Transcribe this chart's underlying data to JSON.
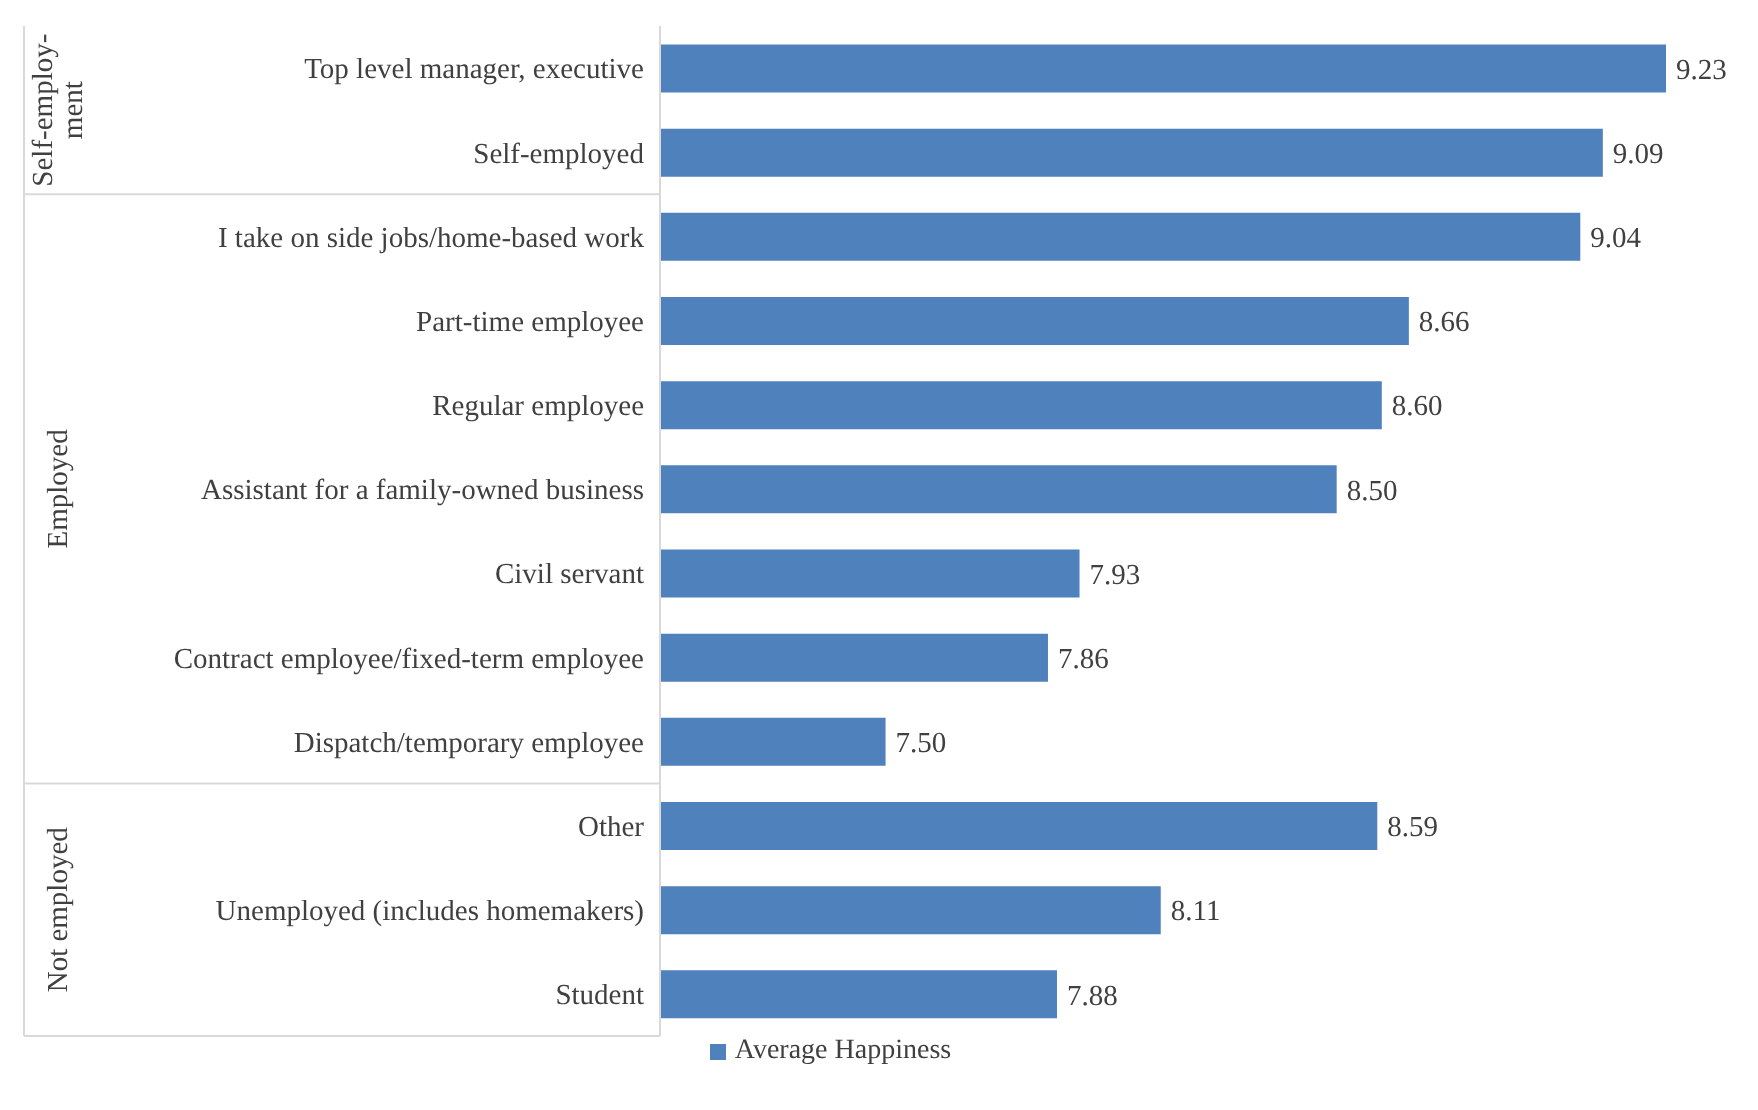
{
  "chart_data": {
    "type": "bar",
    "orientation": "horizontal",
    "tick_labels": "y",
    "categories": [
      "Top level manager, executive",
      "Self-employed",
      "I take on side jobs/home-based work",
      "Part-time employee",
      "Regular employee",
      "Assistant for a family-owned business",
      "Civil servant",
      "Contract employee/fixed-term employee",
      "Dispatch/temporary employee",
      "Other",
      "Unemployed (includes homemakers)",
      "Student"
    ],
    "xlim": [
      7,
      9.23
    ],
    "series": [
      {
        "name": "Average Happiness",
        "color": "#4f81bd",
        "values": [
          9.23,
          9.09,
          9.04,
          8.66,
          8.6,
          8.5,
          7.93,
          7.86,
          7.5,
          8.59,
          8.11,
          7.88
        ],
        "value_labels": [
          "9.23",
          "9.09",
          "9.04",
          "8.66",
          "8.60",
          "8.50",
          "7.93",
          "7.86",
          "7.50",
          "8.59",
          "8.11",
          "7.88"
        ]
      }
    ],
    "legend": "bottom",
    "annotations": [
      "Self-employ-ment",
      "Employed",
      "Not employed"
    ]
  }
}
